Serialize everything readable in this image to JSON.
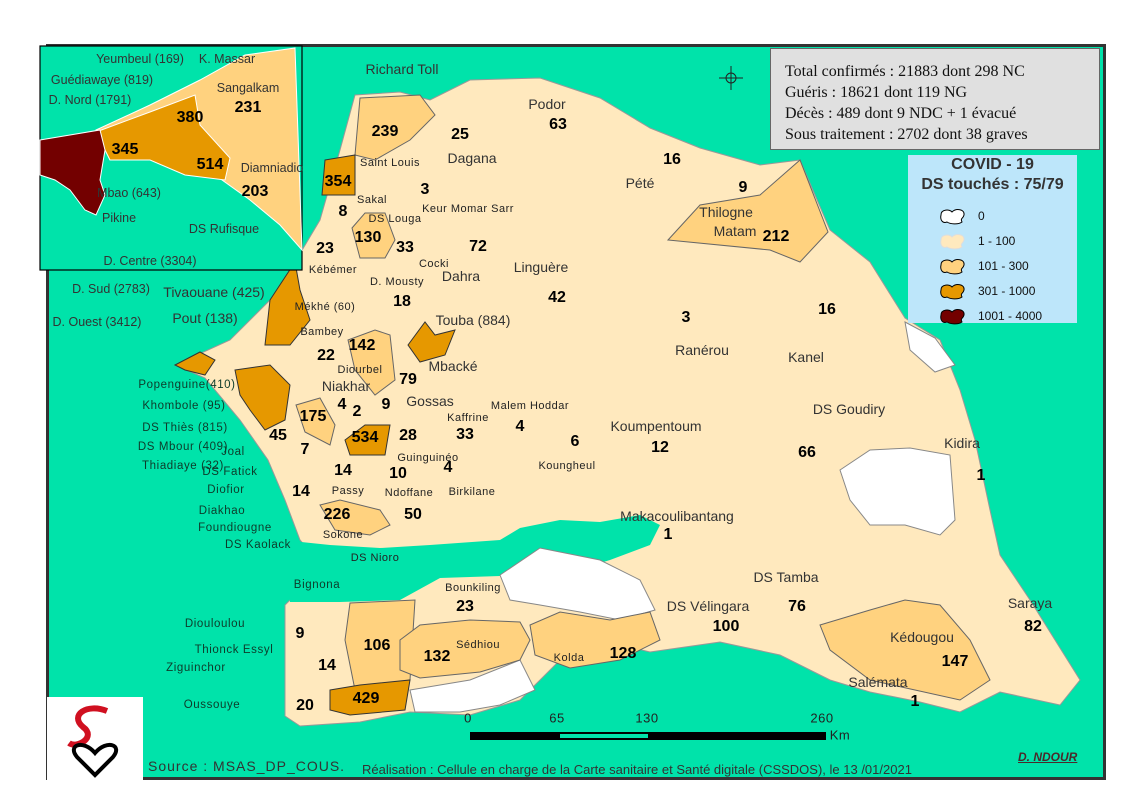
{
  "stats": {
    "line1": "Total confirmés : 21883  dont 298 NC",
    "line2": "Guéris : 18621  dont  119 NG",
    "line3": "Décès : 489 dont 9 NDC + 1 évacué",
    "line4": "Sous traitement : 2702 dont 38 graves"
  },
  "legend": {
    "title1": "COVID - 19",
    "title2": "DS touchés :  75/79",
    "items": [
      {
        "label": "0",
        "color": "#FFFFFF"
      },
      {
        "label": "1 - 100",
        "color": "#FFE9BE"
      },
      {
        "label": "101 - 300",
        "color": "#FFD27F"
      },
      {
        "label": "301 - 1000",
        "color": "#E69800"
      },
      {
        "label": "1001 - 4000",
        "color": "#730000"
      }
    ]
  },
  "colors": {
    "sea": "#00E3AA",
    "country": "#FFE9BE"
  },
  "counts": [
    "231",
    "380",
    "345",
    "514",
    "203",
    "239",
    "25",
    "63",
    "354",
    "3",
    "8",
    "130",
    "33",
    "72",
    "16",
    "9",
    "212",
    "23",
    "18",
    "42",
    "3",
    "16",
    "22",
    "142",
    "79",
    "4",
    "9",
    "2",
    "175",
    "45",
    "534",
    "28",
    "33",
    "4",
    "6",
    "12",
    "66",
    "1",
    "7",
    "14",
    "10",
    "4",
    "14",
    "226",
    "50",
    "1",
    "23",
    "100",
    "76",
    "82",
    "9",
    "106",
    "132",
    "128",
    "14",
    "147",
    "429",
    "20",
    "1"
  ],
  "places": [
    "Richard Toll",
    "Podor",
    "Dagana",
    "Saint Louis",
    "Pété",
    "Thilogne",
    "Keur Momar Sarr",
    "Sakal",
    "DS Louga",
    "Matam",
    "Kébémer",
    "Cocki",
    "Dahra",
    "Linguère",
    "D. Mousty",
    "Tivaouane (425)",
    "Mékhé (60)",
    "Touba (884)",
    "Pout (138)",
    "Ranérou",
    "Kanel",
    "Bambey",
    "Mbacké",
    "Diourbel",
    "Niakhar",
    "Gossas",
    "Malem Hoddar",
    "DS Goudiry",
    "Kaffrine",
    "Koumpentoum",
    "Kidira",
    "Guinguinéo",
    "Koungheul",
    "Passy",
    "Ndoffane",
    "Birkilane",
    "Makacoulibantang",
    "Sokone",
    "DS Nioro",
    "DS Tamba",
    "Bounkiling",
    "DS Vélingara",
    "Saraya",
    "Sédhiou",
    "Kédougou",
    "Kolda",
    "Salémata"
  ],
  "callouts": [
    "Popenguine(410)",
    "Khombole (95)",
    "DS Thiès (815)",
    "DS Mbour (409)",
    "Thiadiaye (32)",
    "Joal",
    "DS Fatick",
    "Diofior",
    "Diakhao",
    "Foundiougne",
    "DS Kaolack",
    "Bignona",
    "Diouloulou",
    "Thionck Essyl",
    "Ziguinchor",
    "Oussouye"
  ],
  "inset": [
    "Yeumbeul (169)",
    "K. Massar",
    "Guédiawaye (819)",
    "D. Nord (1791)",
    "Sangalkam",
    "Diamniadio",
    "Mbao (643)",
    "Pikine",
    "DS Rufisque",
    "D. Centre (3304)",
    "D. Sud (2783)",
    "D. Ouest (3412)"
  ],
  "scale": {
    "t0": "0",
    "t1": "65",
    "t2": "130",
    "t3": "260",
    "unit": "Km"
  },
  "footer": {
    "source": "Source : MSAS_DP_COUS.",
    "credit": "Réalisation : Cellule en charge de la Carte sanitaire et Santé digitale (CSSDOS), le 13 /01/2021",
    "author": "D. NDOUR"
  }
}
